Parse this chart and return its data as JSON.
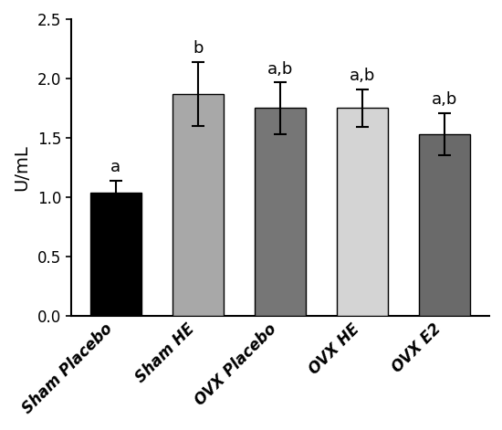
{
  "categories": [
    "Sham Placebo",
    "Sham HE",
    "OVX Placebo",
    "OVX HE",
    "OVX E2"
  ],
  "values": [
    1.04,
    1.87,
    1.75,
    1.75,
    1.53
  ],
  "errors": [
    0.1,
    0.27,
    0.22,
    0.16,
    0.18
  ],
  "bar_colors": [
    "#000000",
    "#A8A8A8",
    "#767676",
    "#D4D4D4",
    "#6A6A6A"
  ],
  "bar_edgecolors": [
    "#000000",
    "#000000",
    "#000000",
    "#000000",
    "#000000"
  ],
  "significance_labels": [
    "a",
    "b",
    "a,b",
    "a,b",
    "a,b"
  ],
  "ylabel": "U/mL",
  "ylim": [
    0,
    2.5
  ],
  "yticks": [
    0.0,
    0.5,
    1.0,
    1.5,
    2.0,
    2.5
  ],
  "bar_width": 0.62,
  "tick_fontsize": 12,
  "sig_fontsize": 13,
  "ylabel_fontsize": 14,
  "xticklabel_fontsize": 12
}
